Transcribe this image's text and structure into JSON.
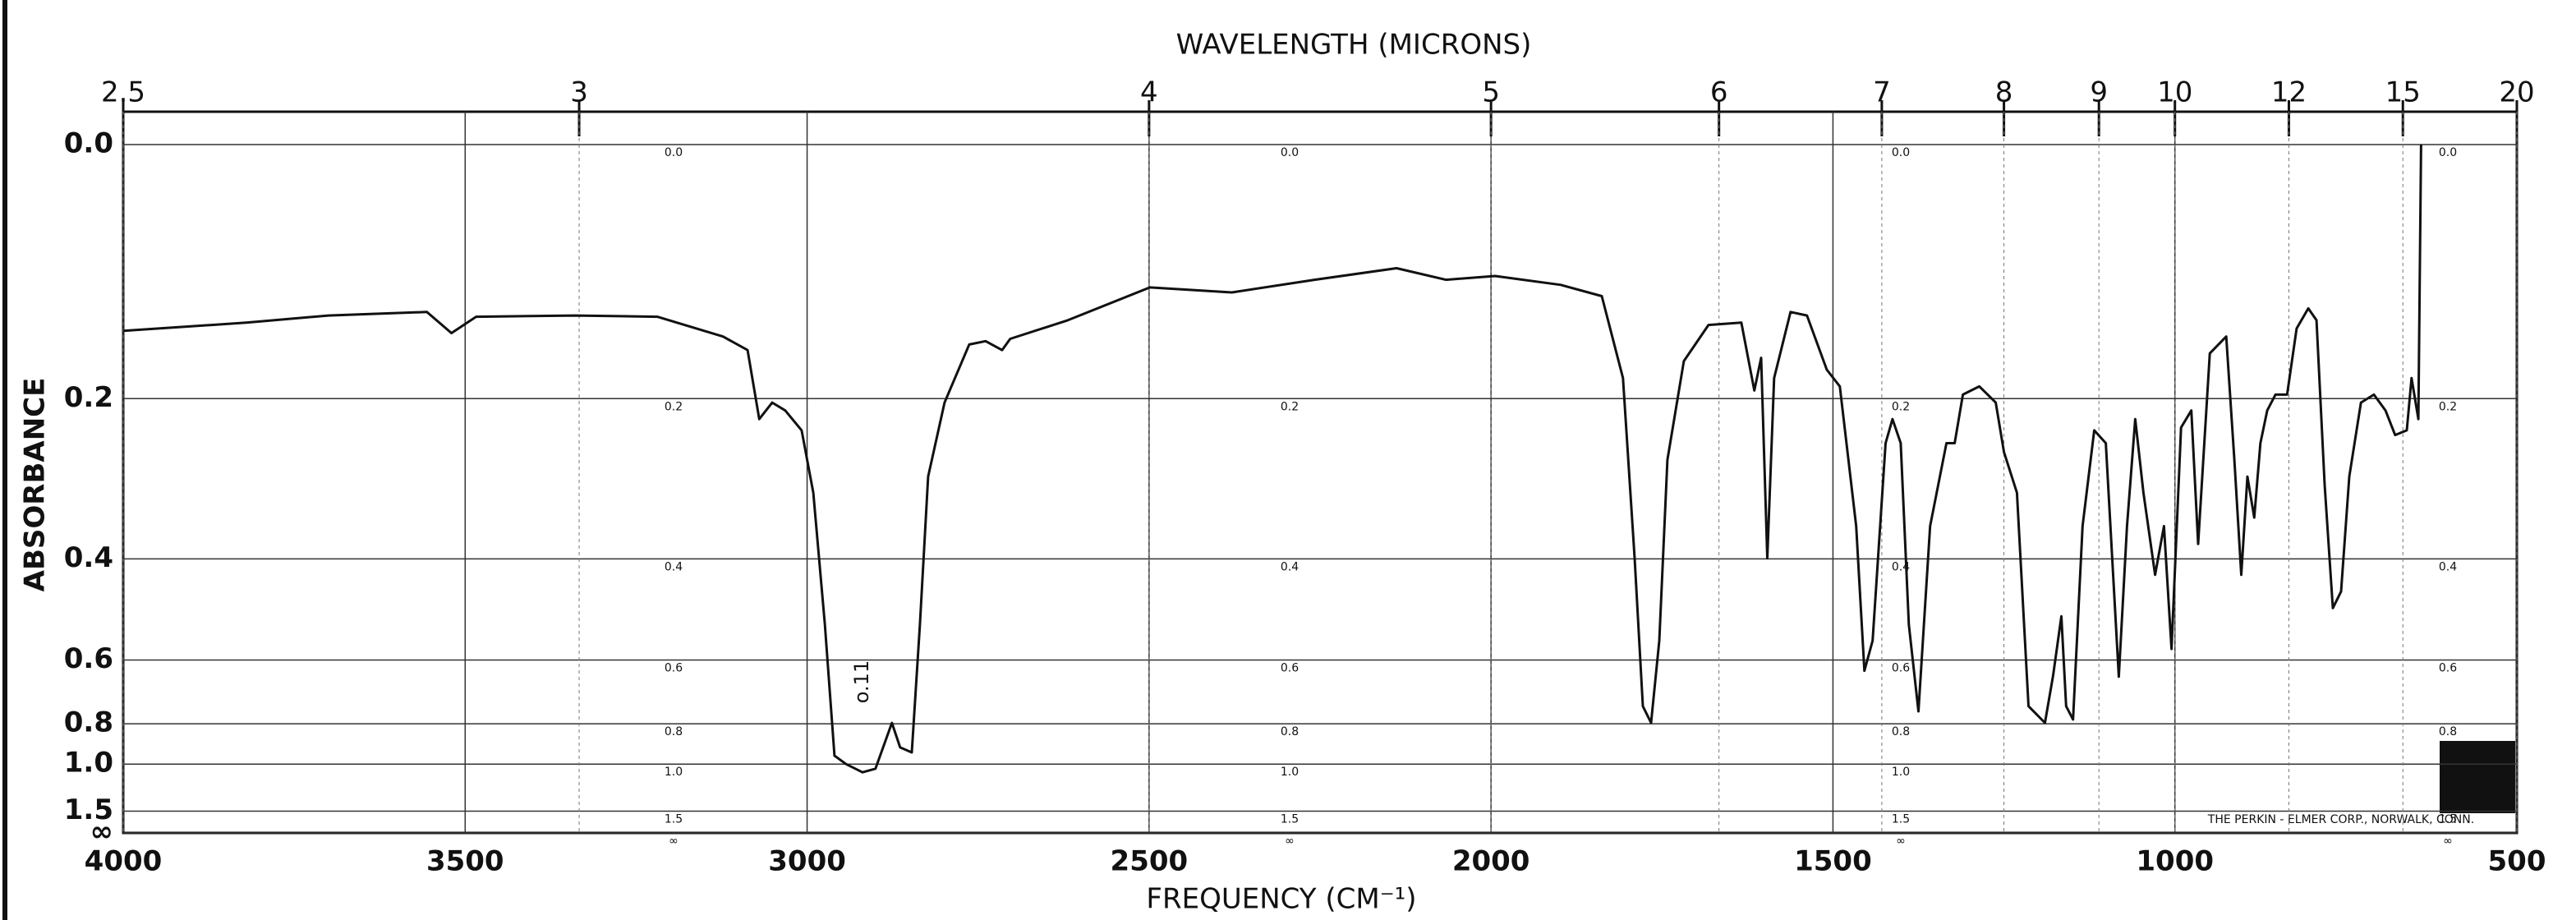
{
  "chart_data": {
    "type": "line",
    "title": "WAVELENGTH (MICRONS)",
    "x_label": "FREQUENCY (CM⁻¹)",
    "y_label": "ABSORBANCE",
    "annotation": "o.11",
    "credit": "THE PERKIN - ELMER CORP., NORWALK, CONN.",
    "yscale": "absorbance",
    "x2scale": "reciprocal",
    "color": "#111111",
    "grid": true,
    "xlim": [
      4000,
      500
    ],
    "xticks": [
      4000,
      3500,
      3000,
      2500,
      2000,
      1500,
      1000,
      500
    ],
    "ylim": [
      0,
      "Infinity"
    ],
    "yticks": [
      {
        "value": 0,
        "label": "0.0"
      },
      0.2,
      0.4,
      0.6,
      0.8,
      {
        "value": 1,
        "label": "1.0"
      },
      1.5,
      {
        "value": "Infinity",
        "label": "∞"
      }
    ],
    "x2ticks": [
      2.5,
      3,
      4,
      5,
      6,
      7,
      8,
      9,
      10,
      12,
      15,
      20
    ],
    "x": [
      4000,
      3820,
      3700,
      3556,
      3520,
      3484,
      3339,
      3219,
      3123,
      3087,
      3070,
      3051,
      3032,
      3008,
      2991,
      2974,
      2960,
      2943,
      2919,
      2900,
      2876,
      2864,
      2847,
      2835,
      2823,
      2799,
      2763,
      2739,
      2715,
      2703,
      2619,
      2499,
      2379,
      2258,
      2138,
      2066,
      1994,
      1898,
      1838,
      1807,
      1790,
      1778,
      1766,
      1754,
      1742,
      1718,
      1682,
      1634,
      1615,
      1605,
      1596,
      1586,
      1562,
      1538,
      1509,
      1490,
      1466,
      1454,
      1442,
      1423,
      1413,
      1401,
      1389,
      1375,
      1358,
      1334,
      1322,
      1310,
      1286,
      1262,
      1250,
      1231,
      1214,
      1190,
      1178,
      1166,
      1159,
      1149,
      1135,
      1118,
      1101,
      1082,
      1070,
      1058,
      1046,
      1029,
      1016,
      1005,
      991,
      976,
      966,
      949,
      925,
      913,
      903,
      894,
      884,
      875,
      865,
      853,
      836,
      822,
      805,
      793,
      781,
      769,
      757,
      745,
      728,
      709,
      692,
      678,
      661,
      654,
      644,
      640
    ],
    "values": [
      0.137,
      0.13,
      0.124,
      0.121,
      0.139,
      0.125,
      0.124,
      0.125,
      0.142,
      0.154,
      0.221,
      0.204,
      0.212,
      0.233,
      0.306,
      0.519,
      0.95,
      1.0,
      1.055,
      1.03,
      0.796,
      0.906,
      0.932,
      0.519,
      0.286,
      0.204,
      0.149,
      0.146,
      0.154,
      0.144,
      0.128,
      0.101,
      0.105,
      0.095,
      0.086,
      0.095,
      0.092,
      0.099,
      0.108,
      0.18,
      0.399,
      0.735,
      0.796,
      0.554,
      0.266,
      0.164,
      0.132,
      0.13,
      0.192,
      0.161,
      0.399,
      0.18,
      0.121,
      0.124,
      0.172,
      0.188,
      0.351,
      0.628,
      0.554,
      0.247,
      0.221,
      0.247,
      0.519,
      0.753,
      0.351,
      0.247,
      0.247,
      0.196,
      0.188,
      0.204,
      0.257,
      0.306,
      0.735,
      0.796,
      0.64,
      0.502,
      0.735,
      0.783,
      0.351,
      0.233,
      0.247,
      0.644,
      0.351,
      0.221,
      0.306,
      0.426,
      0.351,
      0.573,
      0.23,
      0.212,
      0.377,
      0.157,
      0.142,
      0.266,
      0.426,
      0.286,
      0.339,
      0.247,
      0.212,
      0.196,
      0.196,
      0.135,
      0.118,
      0.128,
      0.296,
      0.486,
      0.455,
      0.286,
      0.204,
      0.196,
      0.212,
      0.238,
      0.233,
      0.18,
      0.221,
      0.0
    ]
  }
}
